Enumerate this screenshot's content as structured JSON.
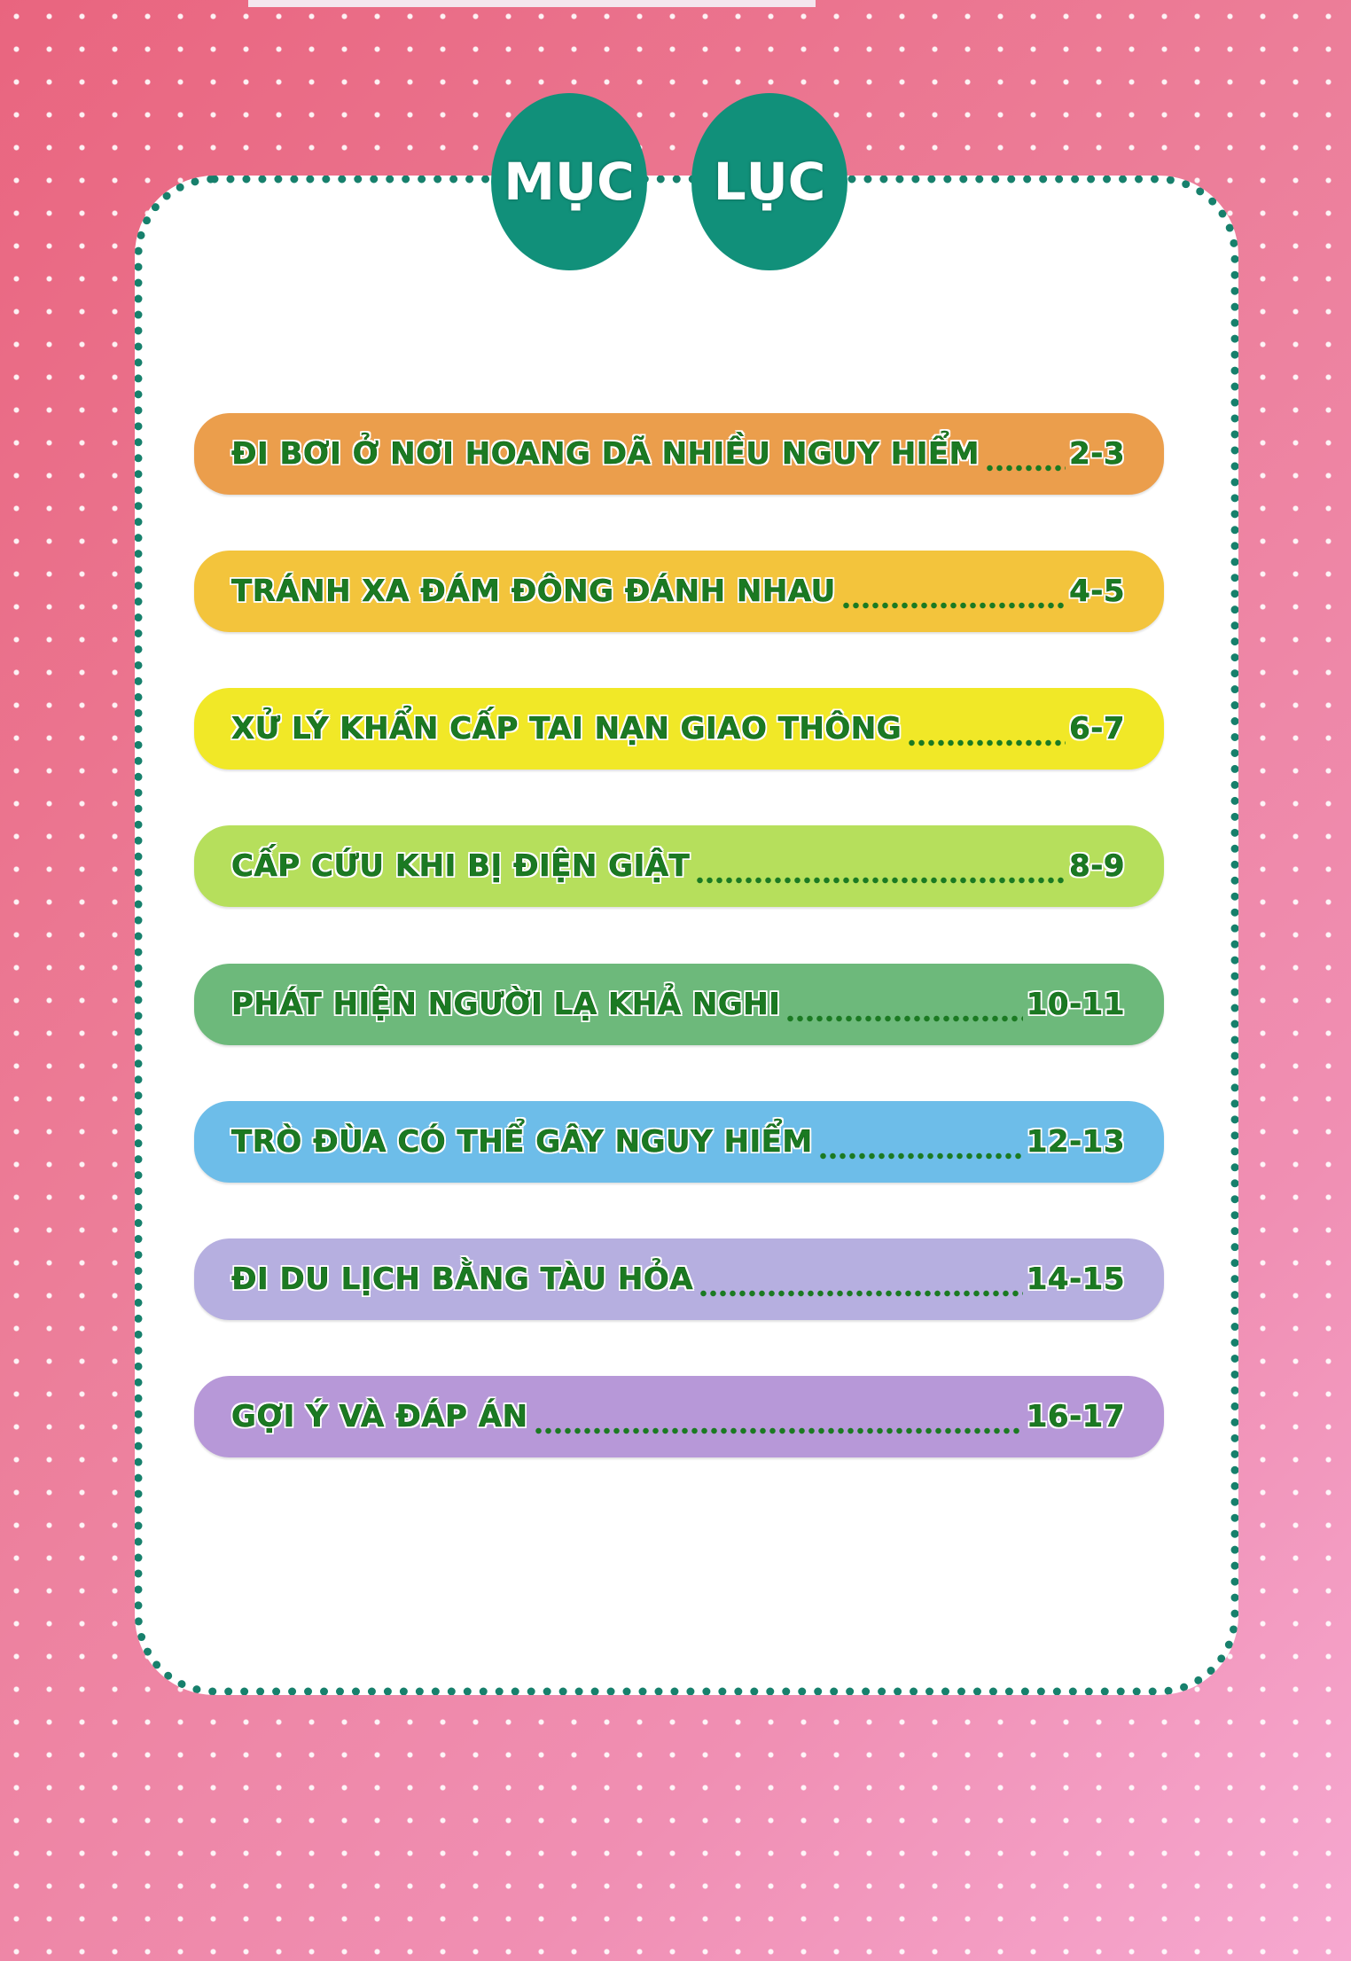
{
  "title": {
    "word1": "MỤC",
    "word2": "LỤC"
  },
  "colors": {
    "title_disc": "#11907a",
    "border_dots": "#17806c",
    "text": "#1b7a22"
  },
  "entries": [
    {
      "label": "ĐI BƠI Ở NƠI HOANG DÃ NHIỀU NGUY HIỂM",
      "pages": "2-3",
      "color": "#eb9e4c"
    },
    {
      "label": "TRÁNH XA ĐÁM ĐÔNG ĐÁNH NHAU",
      "pages": "4-5",
      "color": "#f3c43c"
    },
    {
      "label": "XỬ LÝ KHẨN CẤP TAI NẠN GIAO THÔNG",
      "pages": "6-7",
      "color": "#f1e827"
    },
    {
      "label": "CẤP CỨU KHI BỊ ĐIỆN GIẬT",
      "pages": "8-9",
      "color": "#b6df5c"
    },
    {
      "label": "PHÁT HIỆN NGƯỜI LẠ KHẢ NGHI",
      "pages": "10-11",
      "color": "#6db97b"
    },
    {
      "label": "TRÒ ĐÙA CÓ THỂ GÂY NGUY HIỂM",
      "pages": "12-13",
      "color": "#6dbde9"
    },
    {
      "label": "ĐI DU LỊCH BẰNG TÀU HỎA",
      "pages": "14-15",
      "color": "#b6afe0"
    },
    {
      "label": "GỢI Ý VÀ ĐÁP ÁN",
      "pages": "16-17",
      "color": "#b798d8"
    }
  ]
}
